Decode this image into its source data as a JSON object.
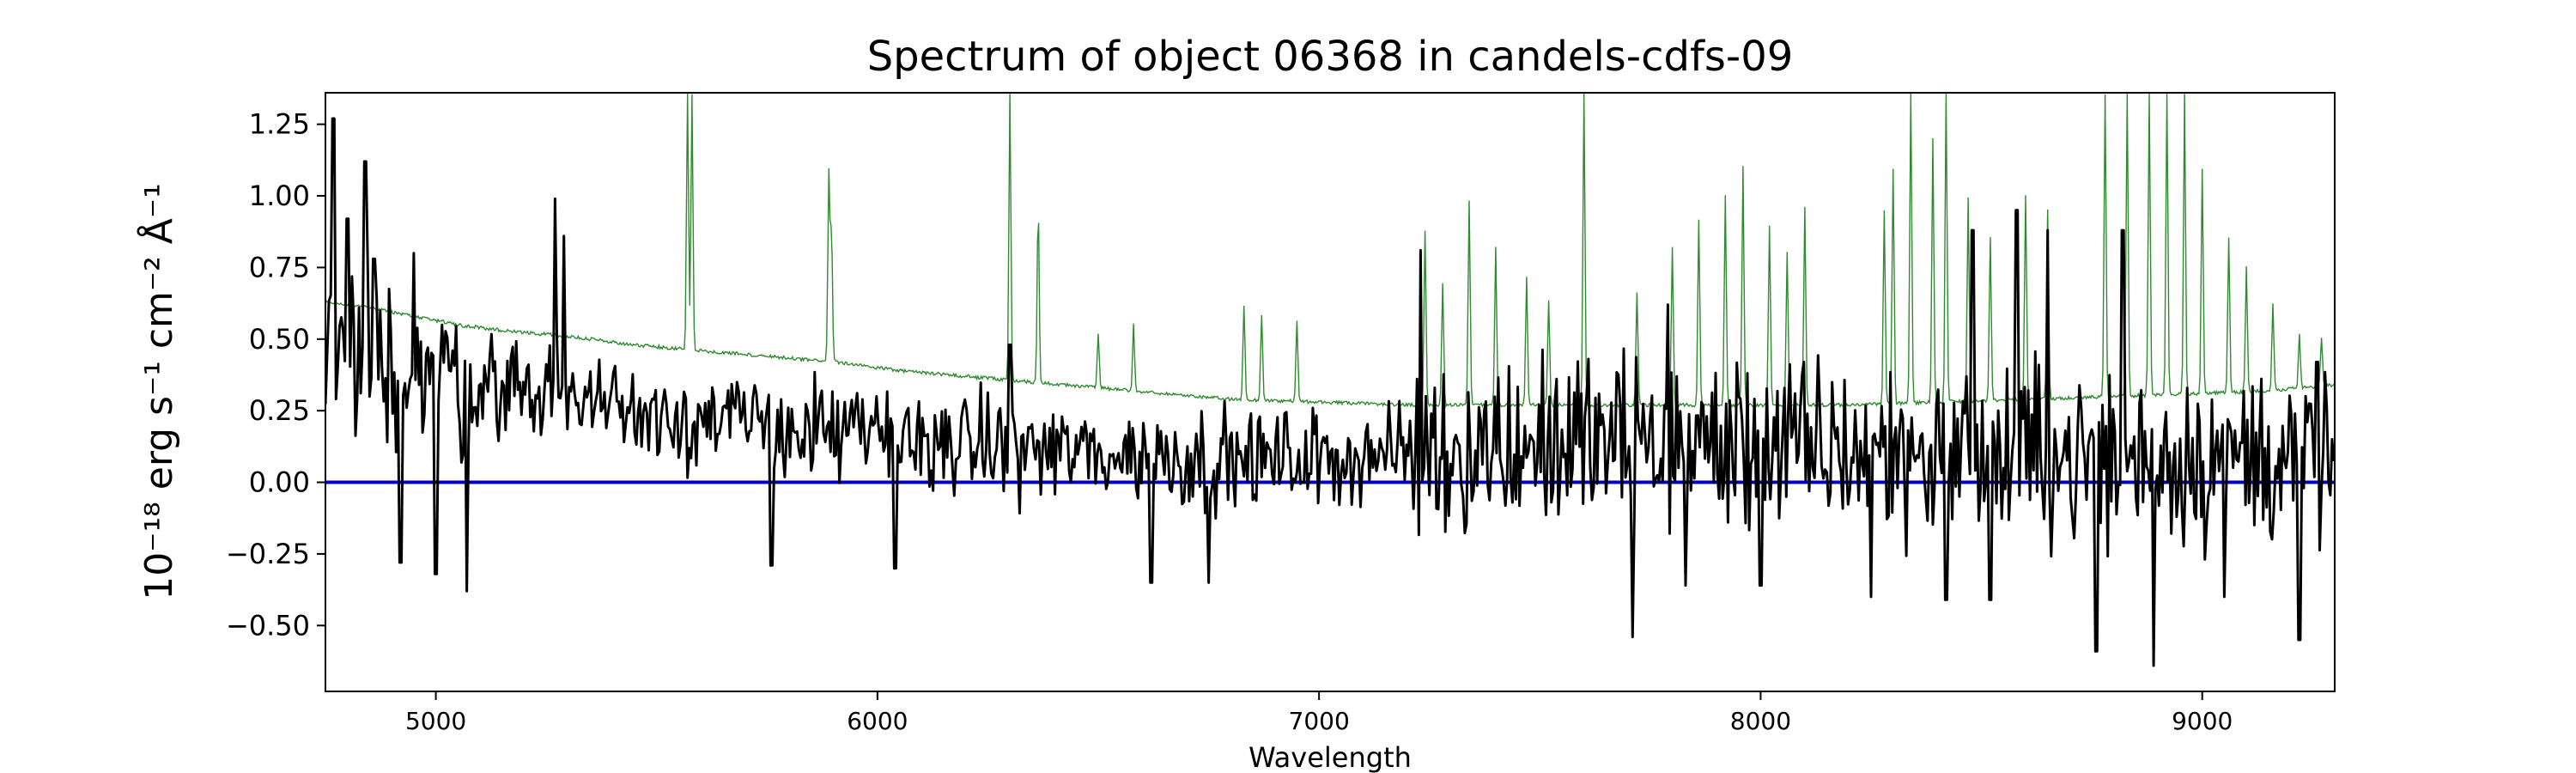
{
  "chart_data": {
    "type": "line",
    "title": "Spectrum of object 06368 in candels-cdfs-09",
    "xlabel": "Wavelength",
    "ylabel": "10⁻¹⁸ erg s⁻¹ cm⁻² Å⁻¹",
    "xlim": [
      4750,
      9300
    ],
    "ylim": [
      -0.73,
      1.36
    ],
    "xticks": [
      5000,
      6000,
      7000,
      8000,
      9000
    ],
    "yticks": [
      -0.5,
      -0.25,
      0.0,
      0.25,
      0.5,
      0.75,
      1.0,
      1.25
    ],
    "ytick_labels": [
      "−0.50",
      "−0.25",
      "0.00",
      "0.25",
      "0.50",
      "0.75",
      "1.00",
      "1.25"
    ],
    "grid": false,
    "colors": {
      "flux": "#000000",
      "error": "#2e8b2e",
      "zero": "#0000cc"
    },
    "error_continuum": [
      [
        4750,
        0.63
      ],
      [
        4850,
        0.61
      ],
      [
        4950,
        0.58
      ],
      [
        5050,
        0.55
      ],
      [
        5150,
        0.53
      ],
      [
        5300,
        0.51
      ],
      [
        5450,
        0.48
      ],
      [
        5600,
        0.46
      ],
      [
        5750,
        0.44
      ],
      [
        5900,
        0.42
      ],
      [
        6050,
        0.39
      ],
      [
        6200,
        0.37
      ],
      [
        6350,
        0.35
      ],
      [
        6500,
        0.33
      ],
      [
        6650,
        0.31
      ],
      [
        6800,
        0.29
      ],
      [
        7000,
        0.28
      ],
      [
        7200,
        0.27
      ],
      [
        7400,
        0.27
      ],
      [
        7600,
        0.27
      ],
      [
        7800,
        0.27
      ],
      [
        8000,
        0.27
      ],
      [
        8200,
        0.27
      ],
      [
        8400,
        0.28
      ],
      [
        8600,
        0.29
      ],
      [
        8800,
        0.3
      ],
      [
        9000,
        0.31
      ],
      [
        9150,
        0.32
      ],
      [
        9300,
        0.34
      ]
    ],
    "error_peaks": [
      [
        5570,
        1.36
      ],
      [
        5580,
        1.36
      ],
      [
        5890,
        1.08
      ],
      [
        5896,
        0.88
      ],
      [
        6300,
        1.36
      ],
      [
        6364,
        0.96
      ],
      [
        6500,
        0.52
      ],
      [
        6580,
        0.55
      ],
      [
        6830,
        0.62
      ],
      [
        6870,
        0.58
      ],
      [
        6950,
        0.56
      ],
      [
        7240,
        0.88
      ],
      [
        7280,
        0.7
      ],
      [
        7340,
        0.98
      ],
      [
        7400,
        0.82
      ],
      [
        7470,
        0.72
      ],
      [
        7520,
        0.64
      ],
      [
        7600,
        1.36
      ],
      [
        7720,
        0.66
      ],
      [
        7800,
        0.82
      ],
      [
        7860,
        0.92
      ],
      [
        7920,
        1.0
      ],
      [
        7960,
        1.1
      ],
      [
        8020,
        0.9
      ],
      [
        8060,
        0.8
      ],
      [
        8100,
        0.96
      ],
      [
        8280,
        0.95
      ],
      [
        8300,
        1.1
      ],
      [
        8340,
        1.36
      ],
      [
        8390,
        1.2
      ],
      [
        8420,
        1.36
      ],
      [
        8470,
        1.0
      ],
      [
        8520,
        0.86
      ],
      [
        8600,
        1.0
      ],
      [
        8650,
        0.95
      ],
      [
        8780,
        1.36
      ],
      [
        8830,
        1.36
      ],
      [
        8880,
        1.36
      ],
      [
        8920,
        1.36
      ],
      [
        8960,
        1.36
      ],
      [
        9000,
        1.1
      ],
      [
        9060,
        0.86
      ],
      [
        9100,
        0.76
      ],
      [
        9160,
        0.62
      ],
      [
        9220,
        0.52
      ],
      [
        9270,
        0.5
      ]
    ],
    "flux_baseline": [
      [
        4750,
        0.45
      ],
      [
        5000,
        0.38
      ],
      [
        5300,
        0.3
      ],
      [
        5600,
        0.22
      ],
      [
        6000,
        0.16
      ],
      [
        6300,
        0.12
      ],
      [
        6700,
        0.08
      ],
      [
        7000,
        0.08
      ],
      [
        7300,
        0.12
      ],
      [
        7600,
        0.14
      ],
      [
        8000,
        0.12
      ],
      [
        8400,
        0.1
      ],
      [
        8800,
        0.08
      ],
      [
        9300,
        0.1
      ]
    ],
    "flux_extremes": [
      [
        4768,
        1.27
      ],
      [
        4800,
        0.92
      ],
      [
        4840,
        1.12
      ],
      [
        4860,
        0.78
      ],
      [
        4920,
        -0.28
      ],
      [
        4950,
        0.8
      ],
      [
        5000,
        -0.32
      ],
      [
        5070,
        -0.38
      ],
      [
        5270,
        0.99
      ],
      [
        5290,
        0.86
      ],
      [
        5760,
        -0.29
      ],
      [
        6040,
        -0.3
      ],
      [
        6300,
        0.48
      ],
      [
        6620,
        -0.35
      ],
      [
        6750,
        -0.35
      ],
      [
        7230,
        0.81
      ],
      [
        7710,
        -0.54
      ],
      [
        7790,
        0.62
      ],
      [
        7830,
        -0.36
      ],
      [
        8000,
        -0.36
      ],
      [
        8250,
        -0.4
      ],
      [
        8420,
        -0.41
      ],
      [
        8480,
        0.88
      ],
      [
        8520,
        -0.41
      ],
      [
        8580,
        0.95
      ],
      [
        8650,
        0.88
      ],
      [
        8760,
        -0.59
      ],
      [
        8820,
        0.88
      ],
      [
        8890,
        -0.64
      ],
      [
        9050,
        -0.4
      ],
      [
        9220,
        -0.55
      ],
      [
        9260,
        0.42
      ]
    ]
  }
}
